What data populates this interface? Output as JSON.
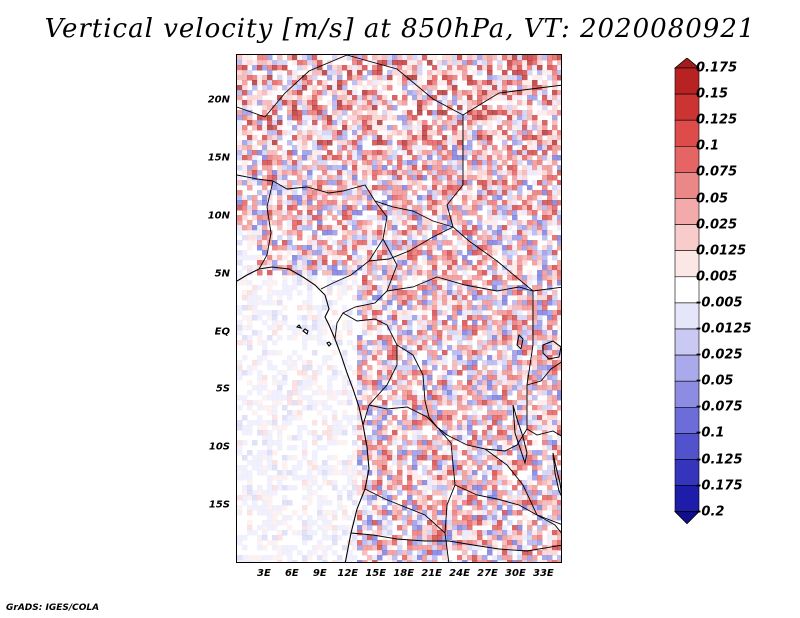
{
  "title": "Vertical velocity [m/s] at 850hPa, VT: 2020080921",
  "credit": "GrADS: IGES/COLA",
  "map": {
    "lon_range": [
      0,
      35
    ],
    "lat_range": [
      -20,
      24
    ],
    "lat_ticks": [
      {
        "value": 20,
        "label": "20N"
      },
      {
        "value": 15,
        "label": "15N"
      },
      {
        "value": 10,
        "label": "10N"
      },
      {
        "value": 5,
        "label": "5N"
      },
      {
        "value": 0,
        "label": "EQ"
      },
      {
        "value": -5,
        "label": "5S"
      },
      {
        "value": -10,
        "label": "10S"
      },
      {
        "value": -15,
        "label": "15S"
      }
    ],
    "lon_ticks": [
      {
        "value": 3,
        "label": "3E"
      },
      {
        "value": 6,
        "label": "6E"
      },
      {
        "value": 9,
        "label": "9E"
      },
      {
        "value": 12,
        "label": "12E"
      },
      {
        "value": 15,
        "label": "15E"
      },
      {
        "value": 18,
        "label": "18E"
      },
      {
        "value": 21,
        "label": "21E"
      },
      {
        "value": 24,
        "label": "24E"
      },
      {
        "value": 27,
        "label": "27E"
      },
      {
        "value": 30,
        "label": "30E"
      },
      {
        "value": 33,
        "label": "33E"
      }
    ]
  },
  "colorbar": {
    "labels": [
      "0.175",
      "0.15",
      "0.125",
      "0.1",
      "0.075",
      "0.05",
      "0.025",
      "0.0125",
      "0.005",
      "-0.005",
      "-0.0125",
      "-0.025",
      "-0.05",
      "-0.075",
      "-0.1",
      "-0.125",
      "-0.175",
      "-0.2"
    ],
    "colors": [
      "#a51c1c",
      "#b92222",
      "#cc3333",
      "#dd4b4b",
      "#e56565",
      "#ec8787",
      "#f3aaaa",
      "#f9cccc",
      "#fce7e7",
      "#ffffff",
      "#e6e6fb",
      "#c9c9f3",
      "#a9a9ec",
      "#8c8ce3",
      "#6d6dda",
      "#5252cc",
      "#3434bc",
      "#1d1daa",
      "#10108f"
    ]
  }
}
